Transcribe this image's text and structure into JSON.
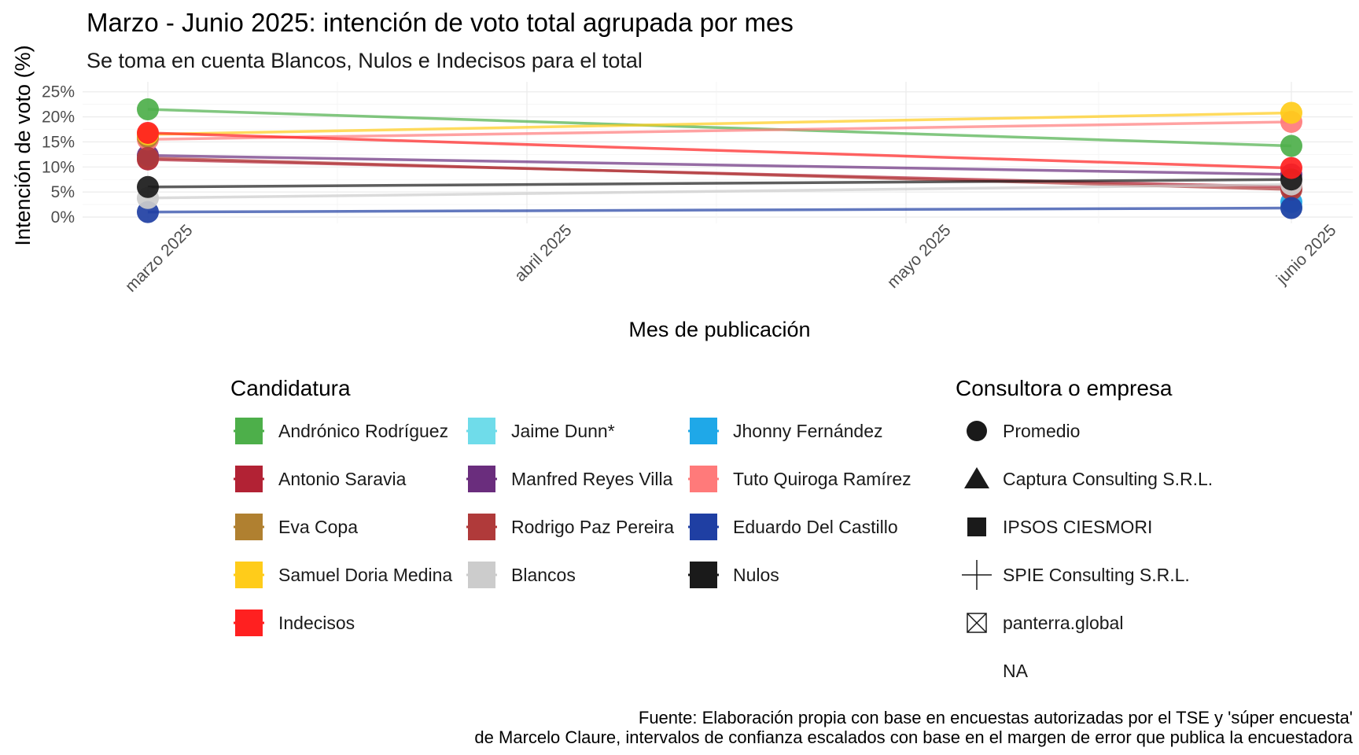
{
  "chart_data": {
    "type": "line",
    "title": "Marzo - Junio 2025: intención de voto total agrupada por mes",
    "subtitle": "Se toma en cuenta Blancos, Nulos e Indecisos para el total",
    "xlabel": "Mes de publicación",
    "ylabel": "Intención de voto (%)",
    "x_ticks": [
      "marzo 2025",
      "abril 2025",
      "mayo 2025",
      "junio 2025"
    ],
    "y_ticks": [
      "0%",
      "5%",
      "10%",
      "15%",
      "20%",
      "25%"
    ],
    "ylim": [
      0,
      27
    ],
    "grid": true,
    "caption": [
      "Fuente: Elaboración propia con base en encuestas autorizadas por el TSE y 'súper encuesta'",
      "de Marcelo Claure, intervalos de confianza escalados con base en el margen de error que publica la encuestadora"
    ],
    "candidatura_title": "Candidatura",
    "consultora_title": "Consultora o empresa",
    "series": [
      {
        "name": "Andrónico Rodríguez",
        "color": "#4daf4a",
        "values": [
          21.5,
          14.2
        ]
      },
      {
        "name": "Jaime Dunn*",
        "color": "#6fdcea",
        "values": [
          null,
          2.0
        ]
      },
      {
        "name": "Jhonny Fernández",
        "color": "#1fa8e8",
        "values": [
          null,
          3.0
        ]
      },
      {
        "name": "Antonio Saravia",
        "color": "#b22234",
        "values": [
          11.5,
          6.0
        ]
      },
      {
        "name": "Manfred Reyes Villa",
        "color": "#6a2d7d",
        "values": [
          12.3,
          8.5
        ]
      },
      {
        "name": "Tuto Quiroga Ramírez",
        "color": "#ff7a7a",
        "values": [
          15.5,
          19.0
        ]
      },
      {
        "name": "Eva Copa",
        "color": "#b08030",
        "values": [
          16.0,
          null
        ]
      },
      {
        "name": "Rodrigo Paz Pereira",
        "color": "#b03a3a",
        "values": [
          11.8,
          5.5
        ]
      },
      {
        "name": "Eduardo Del Castillo",
        "color": "#1f3fa3",
        "values": [
          1.0,
          1.8
        ]
      },
      {
        "name": "Samuel Doria Medina",
        "color": "#ffcc1a",
        "values": [
          16.5,
          20.8
        ]
      },
      {
        "name": "Blancos",
        "color": "#cccccc",
        "values": [
          3.8,
          6.5
        ]
      },
      {
        "name": "Nulos",
        "color": "#1a1a1a",
        "values": [
          6.0,
          7.5
        ]
      },
      {
        "name": "Indecisos",
        "color": "#ff2020",
        "values": [
          16.8,
          9.8
        ]
      }
    ],
    "consultoras": [
      {
        "name": "Promedio",
        "shape": "circle"
      },
      {
        "name": "Captura Consulting S.R.L.",
        "shape": "triangle"
      },
      {
        "name": "IPSOS CIESMORI",
        "shape": "square"
      },
      {
        "name": "SPIE Consulting S.R.L.",
        "shape": "plus"
      },
      {
        "name": "panterra.global",
        "shape": "boxx"
      },
      {
        "name": "NA",
        "shape": "none"
      }
    ]
  }
}
